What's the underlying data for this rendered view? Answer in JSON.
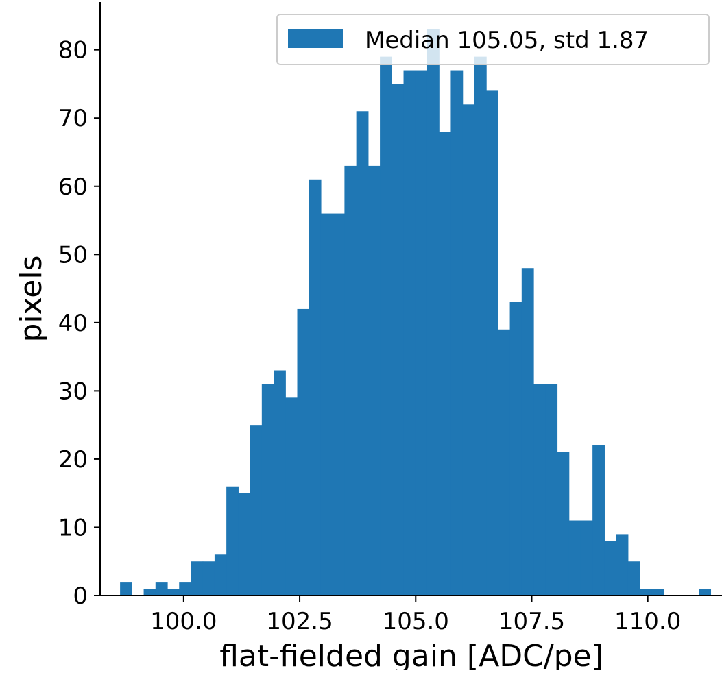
{
  "chart_data": {
    "type": "bar",
    "subtype": "histogram",
    "title": "",
    "xlabel": "flat-fielded gain [ADC/pe]",
    "ylabel": "pixels",
    "xlim": [
      98.2,
      111.6
    ],
    "ylim": [
      0,
      87
    ],
    "xticks": [
      100.0,
      102.5,
      105.0,
      107.5,
      110.0
    ],
    "xtick_labels": [
      "100.0",
      "102.5",
      "105.0",
      "107.5",
      "110.0"
    ],
    "yticks": [
      0,
      10,
      20,
      30,
      40,
      50,
      60,
      70,
      80
    ],
    "ytick_labels": [
      "0",
      "10",
      "20",
      "30",
      "40",
      "50",
      "60",
      "70",
      "80"
    ],
    "bin_start": 98.63,
    "bin_width": 0.2545,
    "counts": [
      2,
      0,
      1,
      2,
      1,
      2,
      5,
      5,
      6,
      16,
      15,
      25,
      31,
      33,
      29,
      42,
      61,
      56,
      56,
      63,
      71,
      63,
      79,
      75,
      77,
      77,
      83,
      68,
      77,
      72,
      79,
      74,
      39,
      43,
      48,
      31,
      31,
      21,
      11,
      11,
      22,
      8,
      9,
      5,
      1,
      1,
      0,
      0,
      0,
      1
    ],
    "series": [
      {
        "name": "Median 105.05, std 1.87",
        "color": "#1f77b4"
      }
    ],
    "legend": {
      "position": "top-right",
      "label": "Median 105.05, std 1.87"
    },
    "grid": false
  }
}
